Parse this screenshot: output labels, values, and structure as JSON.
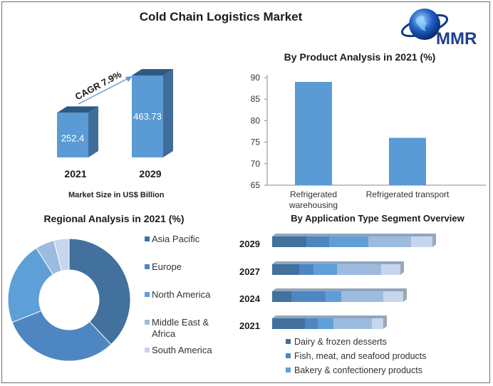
{
  "page": {
    "title": "Cold Chain Logistics Market",
    "logo_text": "MMR"
  },
  "market_size": {
    "title": "",
    "caption": "Market Size in US$ Billion",
    "cagr_label": "CAGR 7.9%",
    "colors": {
      "front": "#5b9bd5",
      "side": "#3f6c98",
      "top": "#2d5a84"
    },
    "chart_data": {
      "type": "bar",
      "categories": [
        "2021",
        "2029"
      ],
      "values": [
        252.4,
        463.73
      ],
      "value_labels": [
        "252.4",
        "463.73"
      ],
      "ylabel": "Market Size in US$ Billion"
    }
  },
  "product": {
    "title": "By Product Analysis in 2021 (%)",
    "color": "#5b9bd5",
    "chart_data": {
      "type": "bar",
      "categories": [
        "Refrigerated warehousing",
        "Refrigerated transport"
      ],
      "values": [
        89,
        76
      ],
      "ylim": [
        65,
        90
      ],
      "yticks": [
        "65",
        "70",
        "75",
        "80",
        "85",
        "90"
      ],
      "grid": false
    }
  },
  "regional": {
    "title": "Regional Analysis in 2021 (%)",
    "chart_data": {
      "type": "pie",
      "donut": true,
      "labels": [
        "Asia Pacific",
        "Europe",
        "North America",
        "Middle East & Africa",
        "South America"
      ],
      "values": [
        38,
        31,
        22,
        5,
        4
      ],
      "colors": [
        "#41719c",
        "#4e86c2",
        "#5f9fd8",
        "#9dbbdf",
        "#c6d6ee"
      ],
      "legend_lines": [
        [
          "Asia Pacific"
        ],
        [
          "Europe"
        ],
        [
          "North America"
        ],
        [
          "Middle East &",
          "Africa"
        ],
        [
          "South America"
        ]
      ],
      "legend": "right"
    }
  },
  "application": {
    "title": "By Application Type Segment Overview",
    "chart_data": {
      "type": "bar",
      "orientation": "horizontal",
      "stacked": true,
      "categories": [
        "2029",
        "2027",
        "2024",
        "2021"
      ],
      "series": [
        {
          "name": "Dairy & frozen desserts",
          "values": [
            48,
            38,
            27,
            46
          ],
          "color": "#41719c"
        },
        {
          "name": "Fish, meat, and seafood products",
          "values": [
            32,
            20,
            48,
            18
          ],
          "color": "#4e86c2"
        },
        {
          "name": "Bakery & confectionery products",
          "values": [
            55,
            33,
            22,
            22
          ],
          "color": "#5f9fd8"
        },
        {
          "name": "",
          "values": [
            60,
            62,
            59,
            54
          ],
          "color": "#9dbbdf"
        },
        {
          "name": "",
          "values": [
            30,
            27,
            28,
            16
          ],
          "color": "#c6d6ee"
        }
      ],
      "legend": "bottom"
    }
  }
}
